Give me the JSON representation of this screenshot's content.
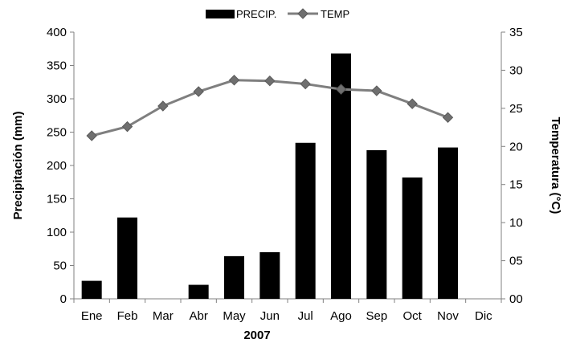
{
  "chart_data": {
    "type": "bar+line",
    "categories": [
      "Ene",
      "Feb",
      "Mar",
      "Abr",
      "May",
      "Jun",
      "Jul",
      "Ago",
      "Sep",
      "Oct",
      "Nov",
      "Dic"
    ],
    "xlabel": "2007",
    "series": [
      {
        "name": "PRECIP.",
        "type": "bar",
        "axis": "left",
        "color": "#000000",
        "values": [
          27,
          122,
          0,
          21,
          64,
          70,
          234,
          368,
          223,
          182,
          227,
          0
        ]
      },
      {
        "name": "TEMP",
        "type": "line",
        "axis": "right",
        "color": "#7f7f7f",
        "marker": "diamond",
        "values": [
          21.4,
          22.6,
          25.3,
          27.2,
          28.7,
          28.6,
          28.2,
          27.5,
          27.3,
          25.6,
          23.8,
          null
        ]
      }
    ],
    "left_axis": {
      "label": "Precipitación (mm)",
      "ylim": [
        0,
        400
      ],
      "ticks": [
        "0",
        "50",
        "100",
        "150",
        "200",
        "250",
        "300",
        "350",
        "400"
      ]
    },
    "right_axis": {
      "label": "Temperatura (°C)",
      "ylim": [
        0,
        35
      ],
      "ticks": [
        "00",
        "05",
        "10",
        "15",
        "20",
        "25",
        "30",
        "35"
      ]
    },
    "legend": {
      "position": "top-center"
    },
    "grid": false
  }
}
